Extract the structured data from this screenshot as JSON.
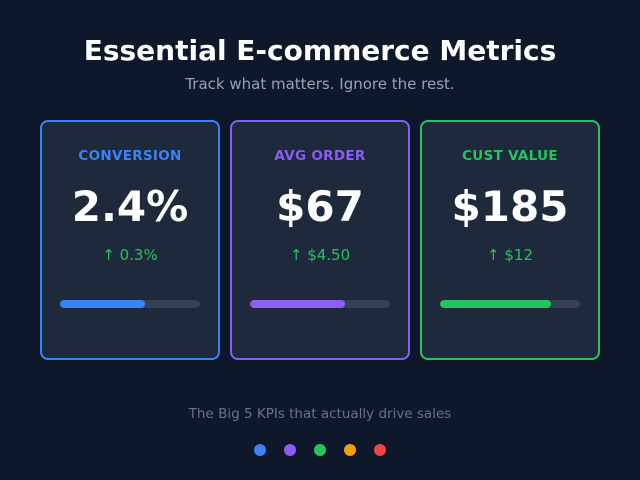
{
  "header": {
    "title": "Essential E-commerce Metrics",
    "subtitle": "Track what matters. Ignore the rest."
  },
  "cards": [
    {
      "label": "CONVERSION",
      "value": "2.4%",
      "change": "↑ 0.3%",
      "accent": "#3b82f6",
      "progress": 0.61
    },
    {
      "label": "AVG ORDER",
      "value": "$67",
      "change": "↑ $4.50",
      "accent": "#8b5cf6",
      "progress": 0.68
    },
    {
      "label": "CUST VALUE",
      "value": "$185",
      "change": "↑ $12",
      "accent": "#22c55e",
      "progress": 0.79
    }
  ],
  "footer": {
    "text": "The Big 5 KPIs that actually drive sales",
    "dots": [
      "#3b82f6",
      "#8b5cf6",
      "#22c55e",
      "#f59e0b",
      "#ef4444"
    ]
  },
  "colors": {
    "background": "#0f172a",
    "card": "#1e293b",
    "track": "#334155",
    "positive": "#22c55e"
  }
}
